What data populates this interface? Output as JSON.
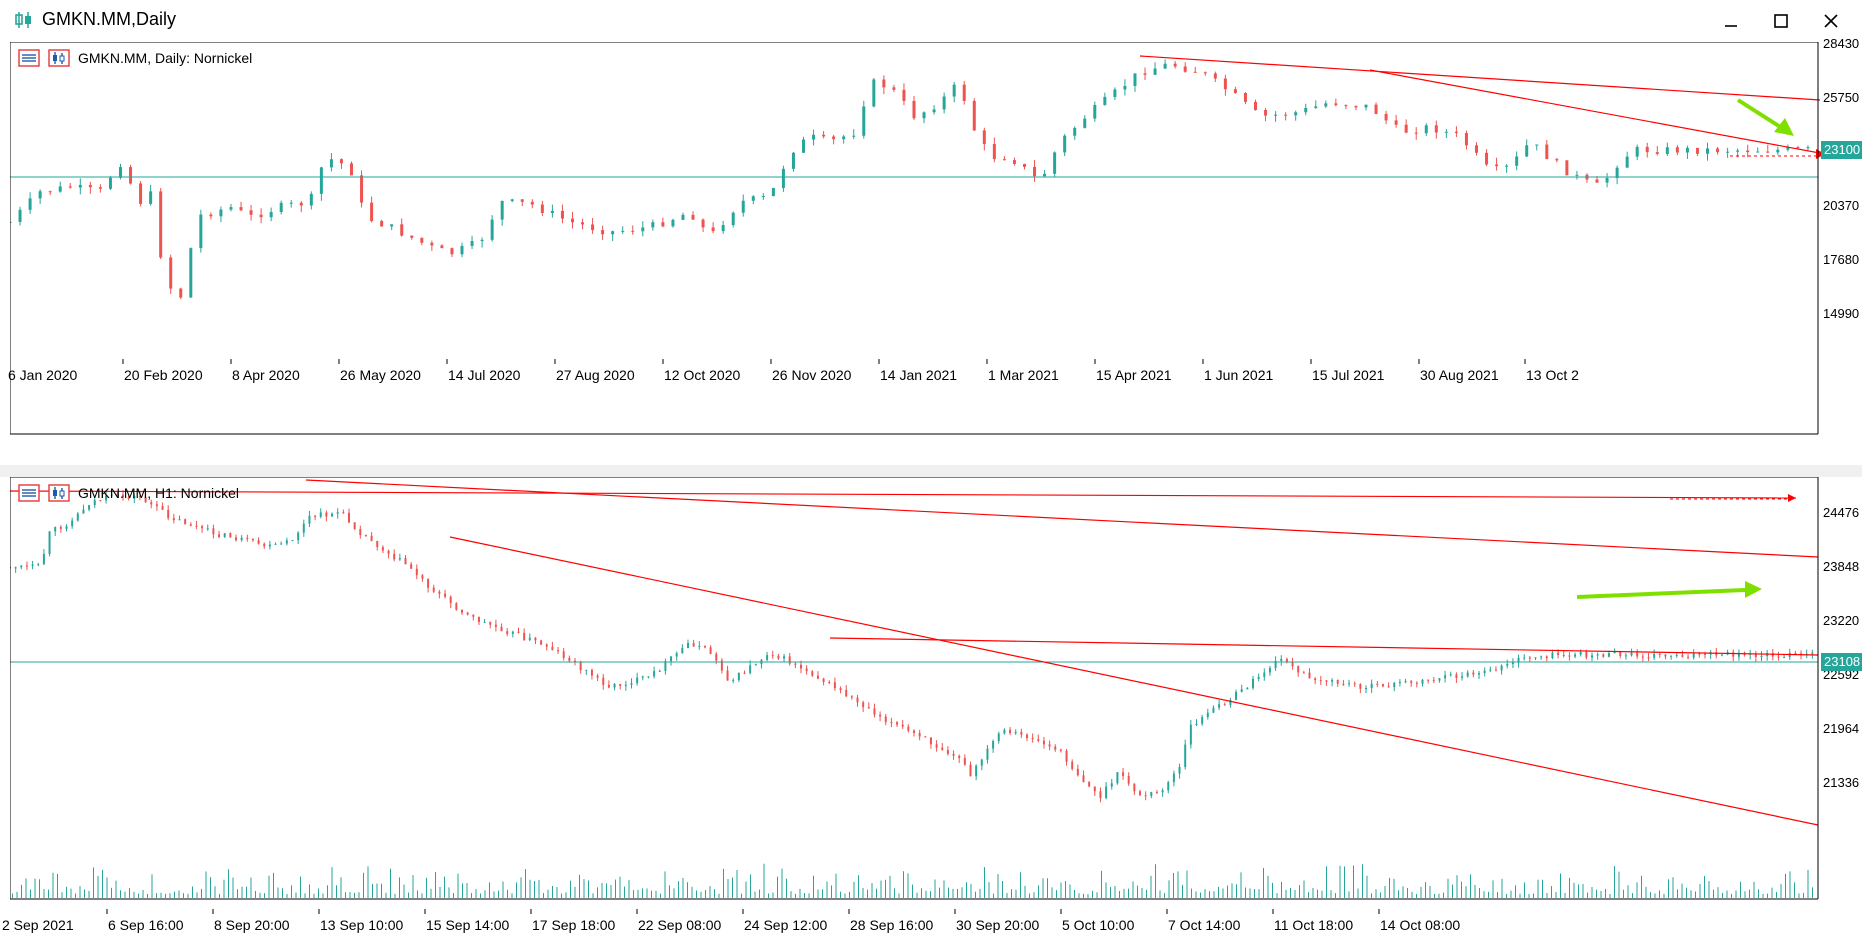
{
  "window": {
    "title": "GMKN.MM,Daily"
  },
  "colors": {
    "bull": "#26a69a",
    "bear": "#ef5350",
    "trend": "#ff0000",
    "arrow": "#7fe000",
    "grid_line": "#26a69a"
  },
  "top_chart": {
    "legend": "GMKN.MM, Daily:  Nornickel",
    "price_levels": [
      "28430",
      "25750",
      "23100",
      "20370",
      "17680",
      "14990"
    ],
    "current_price": "23100",
    "x_labels": [
      "6 Jan 2020",
      "20 Feb 2020",
      "8 Apr 2020",
      "26 May 2020",
      "14 Jul 2020",
      "27 Aug 2020",
      "12 Oct 2020",
      "26 Nov 2020",
      "14 Jan 2021",
      "1 Mar 2021",
      "15 Apr 2021",
      "1 Jun 2021",
      "15 Jul 2021",
      "30 Aug 2021",
      "13 Oct 2"
    ]
  },
  "bottom_chart": {
    "legend": "GMKN.MM, H1:  Nornickel",
    "price_levels": [
      "24476",
      "23848",
      "23220",
      "22592",
      "21964",
      "21336"
    ],
    "current_price": "23108",
    "x_labels": [
      "2 Sep 2021",
      "6 Sep 16:00",
      "8 Sep 20:00",
      "13 Sep 10:00",
      "15 Sep 14:00",
      "17 Sep 18:00",
      "22 Sep 08:00",
      "24 Sep 12:00",
      "28 Sep 16:00",
      "30 Sep 20:00",
      "5 Oct 10:00",
      "7 Oct 14:00",
      "11 Oct 18:00",
      "14 Oct 08:00"
    ]
  }
}
